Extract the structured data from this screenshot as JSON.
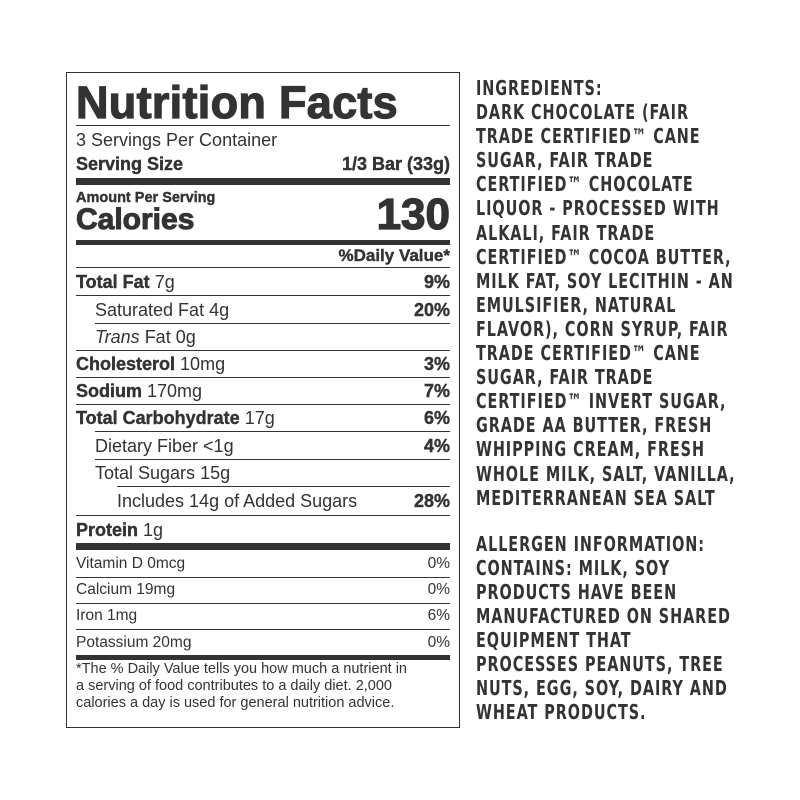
{
  "nutrition": {
    "title": "Nutrition Facts",
    "servings_per_container": "3 Servings Per Container",
    "serving_size_label": "Serving Size",
    "serving_size_value": "1/3 Bar (33g)",
    "amount_per_serving": "Amount Per Serving",
    "calories_label": "Calories",
    "calories_value": "130",
    "daily_value_header": "%Daily Value*",
    "nutrients": [
      {
        "name": "Total Fat",
        "amount": "7g",
        "dv": "9%"
      },
      {
        "name": "Saturated Fat",
        "amount": "4g",
        "dv": "20%"
      },
      {
        "name": "Trans",
        "suffix": " Fat",
        "amount": "0g",
        "dv": ""
      },
      {
        "name": "Cholesterol",
        "amount": "10mg",
        "dv": "3%"
      },
      {
        "name": "Sodium",
        "amount": "170mg",
        "dv": "7%"
      },
      {
        "name": "Total Carbohydrate",
        "amount": "17g",
        "dv": "6%"
      },
      {
        "name": "Dietary Fiber",
        "amount": "<1g",
        "dv": "4%"
      },
      {
        "name": "Total Sugars",
        "amount": "15g",
        "dv": ""
      },
      {
        "name": "Includes 14g of Added Sugars",
        "amount": "",
        "dv": "28%"
      },
      {
        "name": "Protein",
        "amount": "1g",
        "dv": ""
      }
    ],
    "vitamins": [
      {
        "name": "Vitamin D 0mcg",
        "dv": "0%"
      },
      {
        "name": "Calcium 19mg",
        "dv": "0%"
      },
      {
        "name": "Iron 1mg",
        "dv": "6%"
      },
      {
        "name": "Potassium 20mg",
        "dv": "0%"
      }
    ],
    "footnote": [
      "*The % Daily Value tells you how much a nutrient in",
      "a serving of food contributes to a daily diet. 2,000",
      "calories a day is used for general nutrition advice."
    ]
  },
  "ingredients": {
    "lines": [
      "INGREDIENTS:",
      "DARK CHOCOLATE (FAIR",
      "TRADE CERTIFIED™ CANE",
      "SUGAR, FAIR TRADE",
      "CERTIFIED™  CHOCOLATE",
      "LIQUOR - PROCESSED WITH",
      "ALKALI, FAIR TRADE",
      "CERTIFIED™ COCOA BUTTER,",
      "MILK FAT, SOY LECITHIN - AN",
      "EMULSIFIER, NATURAL",
      "FLAVOR), CORN SYRUP, FAIR",
      "TRADE CERTIFIED™ CANE",
      "SUGAR, FAIR TRADE",
      "CERTIFIED™ INVERT SUGAR,",
      "GRADE AA BUTTER, FRESH",
      "WHIPPING CREAM, FRESH",
      "WHOLE MILK, SALT, VANILLA,",
      "MEDITERRANEAN SEA SALT"
    ],
    "allergen_lines": [
      "ALLERGEN INFORMATION:",
      "CONTAINS: MILK, SOY",
      "PRODUCTS HAVE BEEN",
      "MANUFACTURED ON SHARED",
      "EQUIPMENT THAT",
      "PROCESSES PEANUTS, TREE",
      "NUTS, EGG, SOY, DAIRY AND",
      "WHEAT PRODUCTS."
    ]
  }
}
